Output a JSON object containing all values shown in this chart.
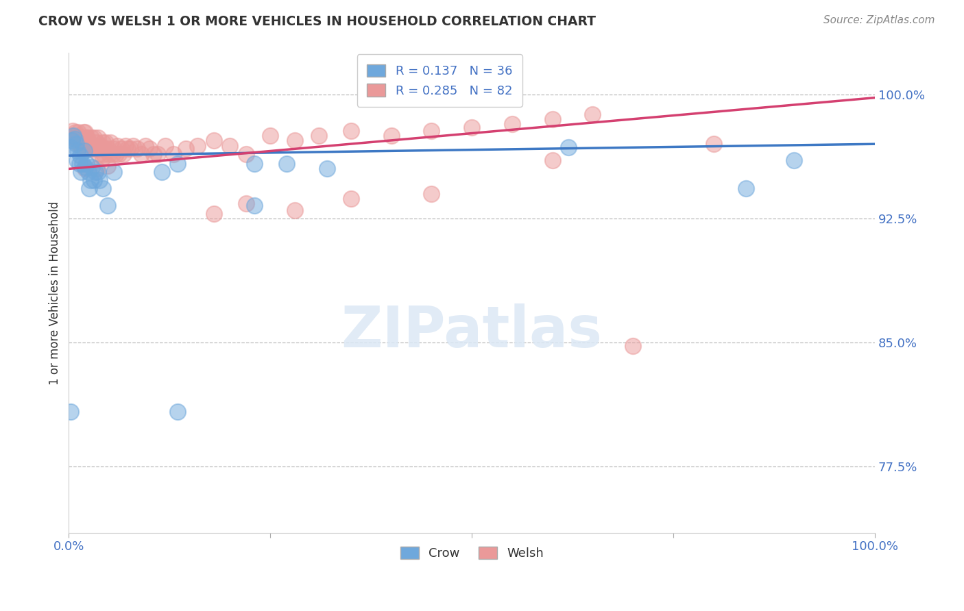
{
  "title": "CROW VS WELSH 1 OR MORE VEHICLES IN HOUSEHOLD CORRELATION CHART",
  "source": "Source: ZipAtlas.com",
  "ylabel": "1 or more Vehicles in Household",
  "ytick_labels": [
    "77.5%",
    "85.0%",
    "92.5%",
    "100.0%"
  ],
  "ytick_values": [
    0.775,
    0.85,
    0.925,
    1.0
  ],
  "xlim": [
    0.0,
    1.0
  ],
  "ylim": [
    0.735,
    1.025
  ],
  "crow_color": "#6fa8dc",
  "welsh_color": "#ea9999",
  "crow_line_color": "#3d78c4",
  "welsh_line_color": "#d44070",
  "text_blue": "#4472c4",
  "crow_R": 0.137,
  "crow_N": 36,
  "welsh_R": 0.285,
  "welsh_N": 82,
  "crow_x": [
    0.002,
    0.004,
    0.006,
    0.007,
    0.009,
    0.01,
    0.011,
    0.013,
    0.014,
    0.015,
    0.017,
    0.019,
    0.02,
    0.022,
    0.024,
    0.025,
    0.027,
    0.029,
    0.031,
    0.033,
    0.036,
    0.038,
    0.042,
    0.048,
    0.056,
    0.115,
    0.135,
    0.23,
    0.27,
    0.32,
    0.002,
    0.135,
    0.23,
    0.62,
    0.84,
    0.9
  ],
  "crow_y": [
    0.968,
    0.972,
    0.975,
    0.973,
    0.97,
    0.96,
    0.966,
    0.958,
    0.963,
    0.953,
    0.958,
    0.966,
    0.956,
    0.958,
    0.953,
    0.943,
    0.948,
    0.956,
    0.948,
    0.953,
    0.953,
    0.948,
    0.943,
    0.933,
    0.953,
    0.953,
    0.958,
    0.933,
    0.958,
    0.955,
    0.808,
    0.808,
    0.958,
    0.968,
    0.943,
    0.96
  ],
  "welsh_x": [
    0.003,
    0.005,
    0.007,
    0.008,
    0.009,
    0.01,
    0.012,
    0.013,
    0.014,
    0.015,
    0.016,
    0.018,
    0.019,
    0.02,
    0.022,
    0.023,
    0.024,
    0.025,
    0.026,
    0.027,
    0.028,
    0.03,
    0.031,
    0.033,
    0.035,
    0.036,
    0.037,
    0.039,
    0.04,
    0.042,
    0.043,
    0.044,
    0.046,
    0.048,
    0.05,
    0.052,
    0.054,
    0.056,
    0.058,
    0.06,
    0.062,
    0.065,
    0.068,
    0.07,
    0.073,
    0.076,
    0.08,
    0.085,
    0.09,
    0.095,
    0.1,
    0.105,
    0.11,
    0.12,
    0.13,
    0.145,
    0.16,
    0.18,
    0.2,
    0.22,
    0.25,
    0.28,
    0.31,
    0.35,
    0.4,
    0.45,
    0.5,
    0.55,
    0.6,
    0.65,
    0.02,
    0.035,
    0.042,
    0.048,
    0.18,
    0.22,
    0.28,
    0.35,
    0.45,
    0.6,
    0.7,
    0.8
  ],
  "welsh_y": [
    0.975,
    0.978,
    0.974,
    0.977,
    0.974,
    0.971,
    0.977,
    0.974,
    0.969,
    0.974,
    0.971,
    0.977,
    0.969,
    0.977,
    0.974,
    0.974,
    0.967,
    0.971,
    0.969,
    0.967,
    0.974,
    0.969,
    0.974,
    0.967,
    0.971,
    0.974,
    0.964,
    0.967,
    0.969,
    0.971,
    0.964,
    0.967,
    0.971,
    0.967,
    0.964,
    0.971,
    0.964,
    0.967,
    0.964,
    0.969,
    0.964,
    0.967,
    0.964,
    0.969,
    0.967,
    0.967,
    0.969,
    0.967,
    0.964,
    0.969,
    0.967,
    0.964,
    0.964,
    0.969,
    0.964,
    0.967,
    0.969,
    0.972,
    0.969,
    0.964,
    0.975,
    0.972,
    0.975,
    0.978,
    0.975,
    0.978,
    0.98,
    0.982,
    0.985,
    0.988,
    0.955,
    0.955,
    0.962,
    0.957,
    0.928,
    0.934,
    0.93,
    0.937,
    0.94,
    0.96,
    0.848,
    0.97
  ]
}
